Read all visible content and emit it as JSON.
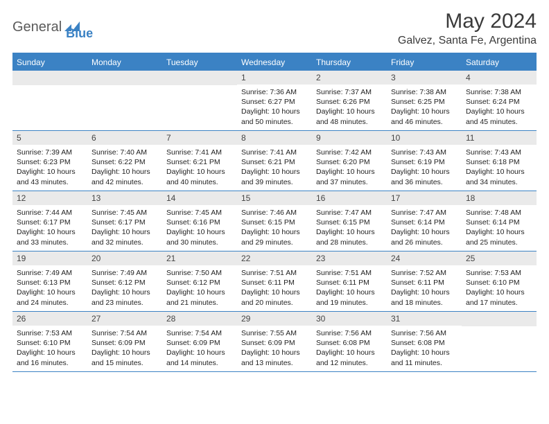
{
  "brand": {
    "part1": "General",
    "part2": "Blue"
  },
  "title": "May 2024",
  "location": "Galvez, Santa Fe, Argentina",
  "colors": {
    "accent": "#3b82c4",
    "header_text": "#ffffff",
    "daynum_bg": "#eaeaea",
    "text": "#222222"
  },
  "weekdays": [
    "Sunday",
    "Monday",
    "Tuesday",
    "Wednesday",
    "Thursday",
    "Friday",
    "Saturday"
  ],
  "weeks": [
    [
      {
        "n": "",
        "sr": "",
        "ss": "",
        "dl": ""
      },
      {
        "n": "",
        "sr": "",
        "ss": "",
        "dl": ""
      },
      {
        "n": "",
        "sr": "",
        "ss": "",
        "dl": ""
      },
      {
        "n": "1",
        "sr": "7:36 AM",
        "ss": "6:27 PM",
        "dl": "10 hours and 50 minutes."
      },
      {
        "n": "2",
        "sr": "7:37 AM",
        "ss": "6:26 PM",
        "dl": "10 hours and 48 minutes."
      },
      {
        "n": "3",
        "sr": "7:38 AM",
        "ss": "6:25 PM",
        "dl": "10 hours and 46 minutes."
      },
      {
        "n": "4",
        "sr": "7:38 AM",
        "ss": "6:24 PM",
        "dl": "10 hours and 45 minutes."
      }
    ],
    [
      {
        "n": "5",
        "sr": "7:39 AM",
        "ss": "6:23 PM",
        "dl": "10 hours and 43 minutes."
      },
      {
        "n": "6",
        "sr": "7:40 AM",
        "ss": "6:22 PM",
        "dl": "10 hours and 42 minutes."
      },
      {
        "n": "7",
        "sr": "7:41 AM",
        "ss": "6:21 PM",
        "dl": "10 hours and 40 minutes."
      },
      {
        "n": "8",
        "sr": "7:41 AM",
        "ss": "6:21 PM",
        "dl": "10 hours and 39 minutes."
      },
      {
        "n": "9",
        "sr": "7:42 AM",
        "ss": "6:20 PM",
        "dl": "10 hours and 37 minutes."
      },
      {
        "n": "10",
        "sr": "7:43 AM",
        "ss": "6:19 PM",
        "dl": "10 hours and 36 minutes."
      },
      {
        "n": "11",
        "sr": "7:43 AM",
        "ss": "6:18 PM",
        "dl": "10 hours and 34 minutes."
      }
    ],
    [
      {
        "n": "12",
        "sr": "7:44 AM",
        "ss": "6:17 PM",
        "dl": "10 hours and 33 minutes."
      },
      {
        "n": "13",
        "sr": "7:45 AM",
        "ss": "6:17 PM",
        "dl": "10 hours and 32 minutes."
      },
      {
        "n": "14",
        "sr": "7:45 AM",
        "ss": "6:16 PM",
        "dl": "10 hours and 30 minutes."
      },
      {
        "n": "15",
        "sr": "7:46 AM",
        "ss": "6:15 PM",
        "dl": "10 hours and 29 minutes."
      },
      {
        "n": "16",
        "sr": "7:47 AM",
        "ss": "6:15 PM",
        "dl": "10 hours and 28 minutes."
      },
      {
        "n": "17",
        "sr": "7:47 AM",
        "ss": "6:14 PM",
        "dl": "10 hours and 26 minutes."
      },
      {
        "n": "18",
        "sr": "7:48 AM",
        "ss": "6:14 PM",
        "dl": "10 hours and 25 minutes."
      }
    ],
    [
      {
        "n": "19",
        "sr": "7:49 AM",
        "ss": "6:13 PM",
        "dl": "10 hours and 24 minutes."
      },
      {
        "n": "20",
        "sr": "7:49 AM",
        "ss": "6:12 PM",
        "dl": "10 hours and 23 minutes."
      },
      {
        "n": "21",
        "sr": "7:50 AM",
        "ss": "6:12 PM",
        "dl": "10 hours and 21 minutes."
      },
      {
        "n": "22",
        "sr": "7:51 AM",
        "ss": "6:11 PM",
        "dl": "10 hours and 20 minutes."
      },
      {
        "n": "23",
        "sr": "7:51 AM",
        "ss": "6:11 PM",
        "dl": "10 hours and 19 minutes."
      },
      {
        "n": "24",
        "sr": "7:52 AM",
        "ss": "6:11 PM",
        "dl": "10 hours and 18 minutes."
      },
      {
        "n": "25",
        "sr": "7:53 AM",
        "ss": "6:10 PM",
        "dl": "10 hours and 17 minutes."
      }
    ],
    [
      {
        "n": "26",
        "sr": "7:53 AM",
        "ss": "6:10 PM",
        "dl": "10 hours and 16 minutes."
      },
      {
        "n": "27",
        "sr": "7:54 AM",
        "ss": "6:09 PM",
        "dl": "10 hours and 15 minutes."
      },
      {
        "n": "28",
        "sr": "7:54 AM",
        "ss": "6:09 PM",
        "dl": "10 hours and 14 minutes."
      },
      {
        "n": "29",
        "sr": "7:55 AM",
        "ss": "6:09 PM",
        "dl": "10 hours and 13 minutes."
      },
      {
        "n": "30",
        "sr": "7:56 AM",
        "ss": "6:08 PM",
        "dl": "10 hours and 12 minutes."
      },
      {
        "n": "31",
        "sr": "7:56 AM",
        "ss": "6:08 PM",
        "dl": "10 hours and 11 minutes."
      },
      {
        "n": "",
        "sr": "",
        "ss": "",
        "dl": ""
      }
    ]
  ],
  "labels": {
    "sunrise": "Sunrise: ",
    "sunset": "Sunset: ",
    "daylight": "Daylight: "
  }
}
